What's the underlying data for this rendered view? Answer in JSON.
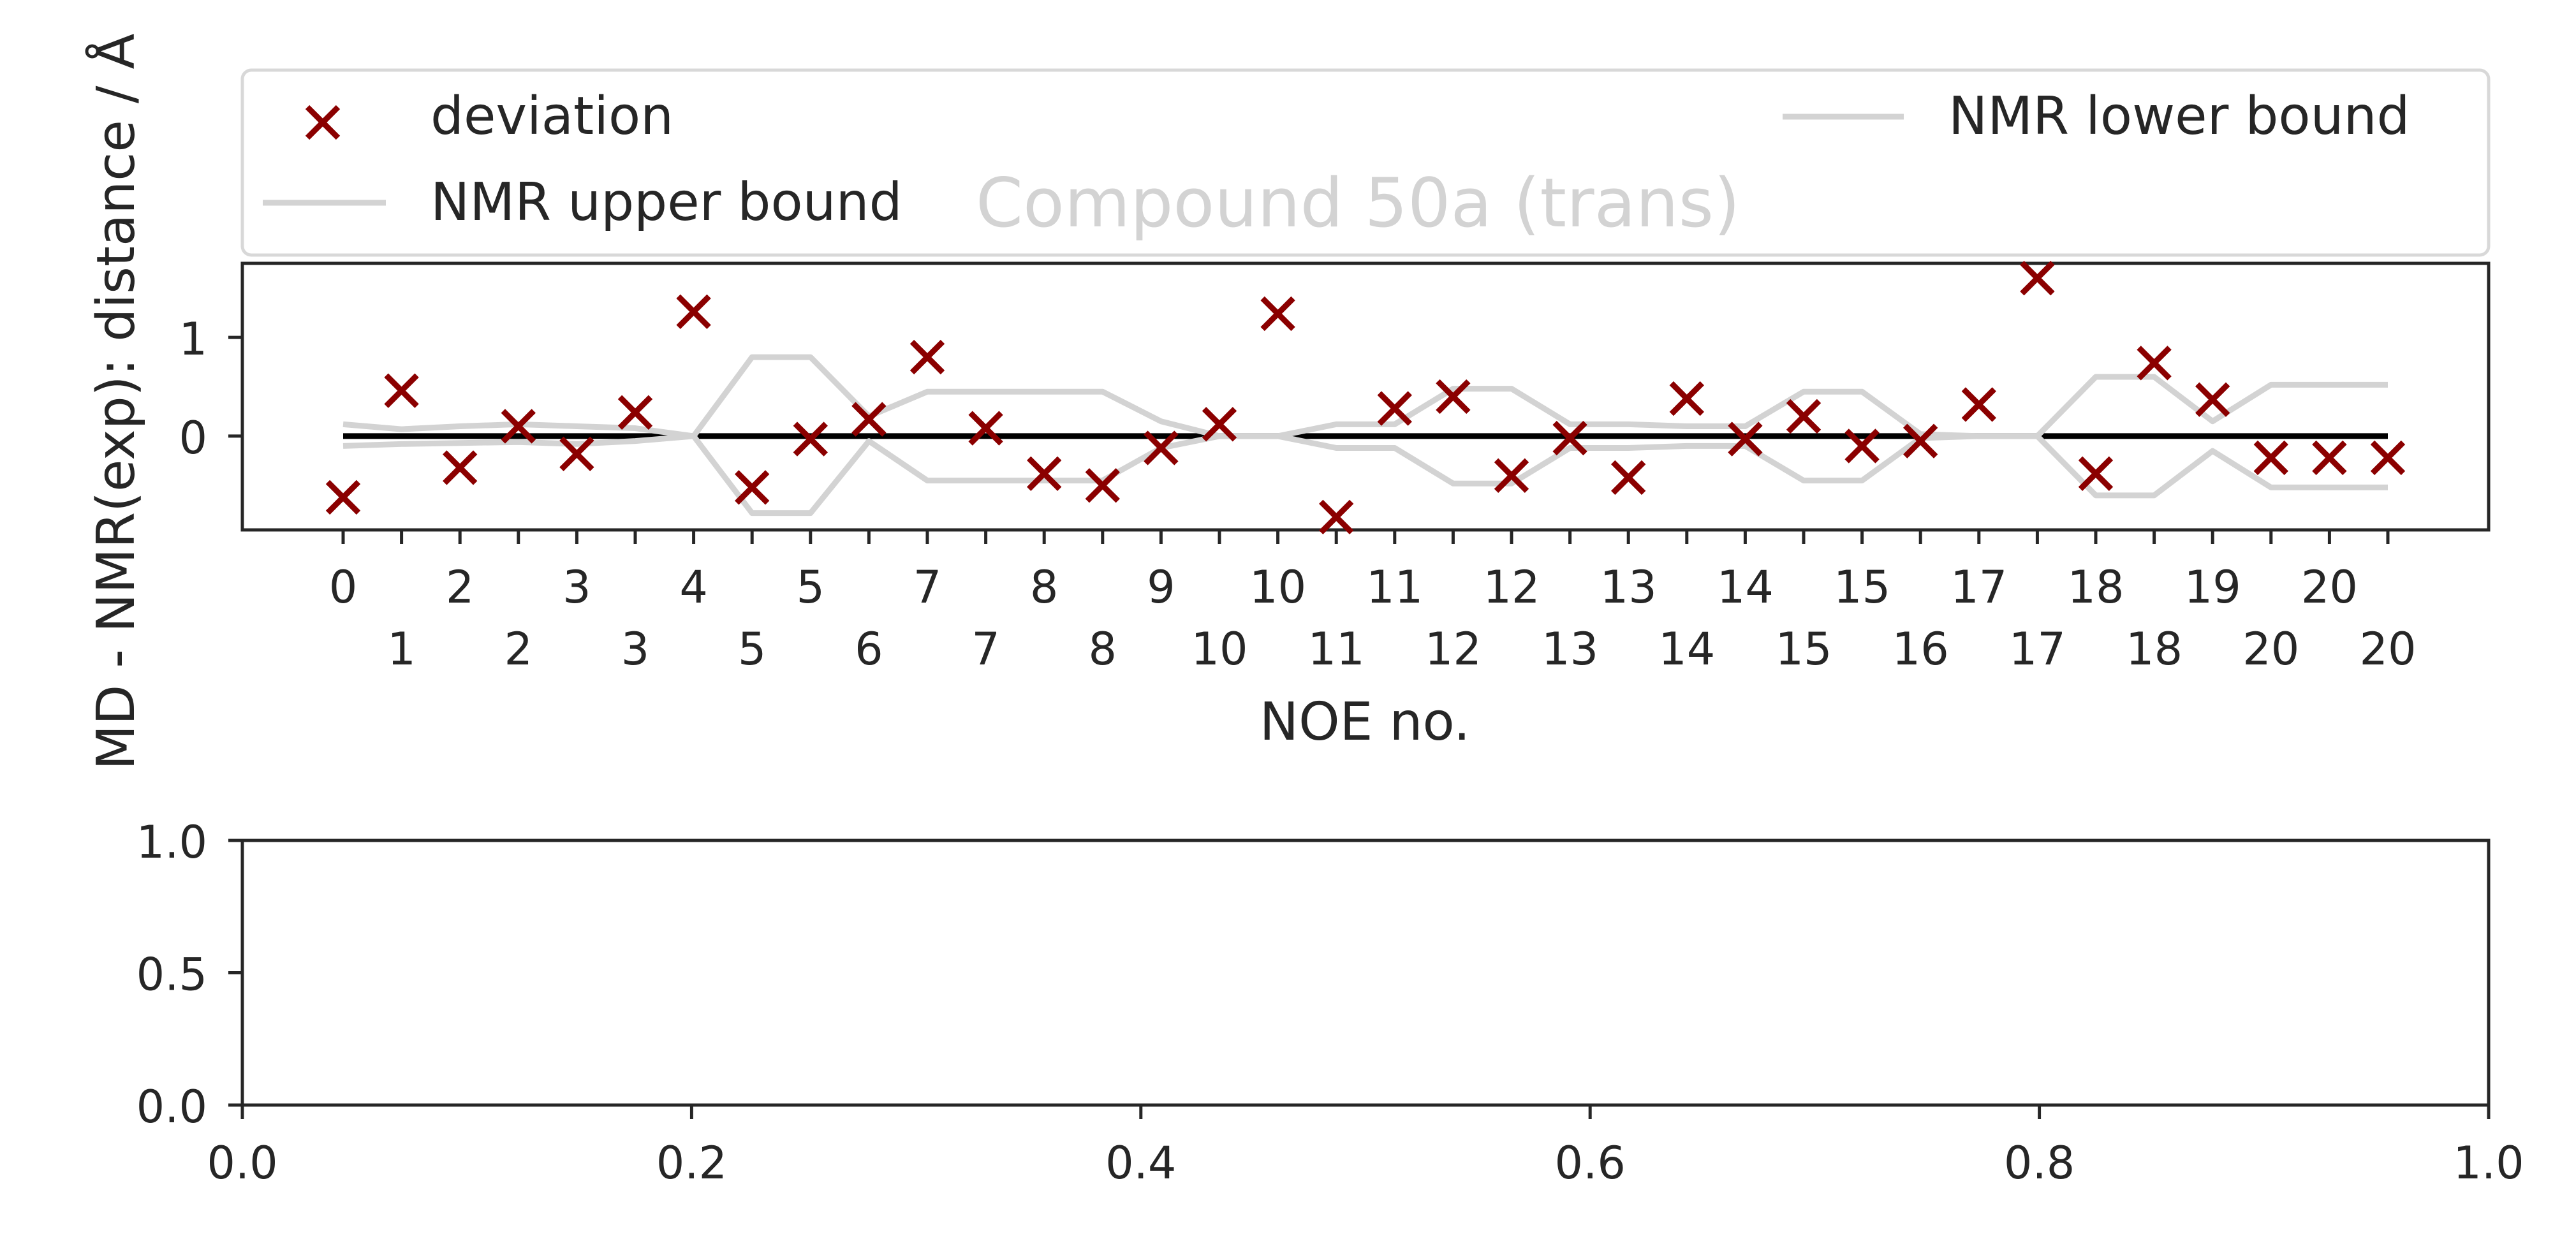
{
  "chart_data": [
    {
      "type": "scatter",
      "title": "Compound 50a (trans)",
      "xlabel": "NOE no.",
      "ylabel": "MD - NMR(exp): distance / Å",
      "ylim": [
        -0.95,
        1.75
      ],
      "yticks": [
        0,
        1
      ],
      "xtick_labels": [
        "0",
        "1",
        "2",
        "2",
        "3",
        "3",
        "4",
        "5",
        "5",
        "6",
        "7",
        "7",
        "8",
        "8",
        "9",
        "10",
        "10",
        "11",
        "11",
        "12",
        "12",
        "13",
        "13",
        "14",
        "14",
        "15",
        "15",
        "16",
        "17",
        "17",
        "18",
        "18",
        "19",
        "20",
        "20",
        "20"
      ],
      "legend": {
        "placement": "top, outside axes (expanded)",
        "entries": [
          "deviation",
          "NMR lower bound",
          "NMR upper bound"
        ]
      },
      "colors": {
        "deviation": "#8b0000",
        "bounds": "#d3d3d3",
        "zero_line": "#000000"
      },
      "series": [
        {
          "name": "deviation",
          "marker": "x",
          "values": [
            -0.62,
            0.46,
            -0.32,
            0.1,
            -0.18,
            0.24,
            1.26,
            -0.52,
            -0.03,
            0.17,
            0.8,
            0.08,
            -0.38,
            -0.5,
            -0.12,
            0.12,
            1.24,
            -0.82,
            0.28,
            0.4,
            -0.4,
            -0.02,
            -0.42,
            0.38,
            -0.03,
            0.2,
            -0.1,
            -0.05,
            0.32,
            1.6,
            -0.38,
            0.74,
            0.37,
            -0.22,
            -0.22,
            -0.22
          ]
        },
        {
          "name": "NMR upper bound",
          "values": [
            0.12,
            0.07,
            0.1,
            0.12,
            0.1,
            0.08,
            0.0,
            0.8,
            0.8,
            0.2,
            0.45,
            0.45,
            0.45,
            0.45,
            0.15,
            0.0,
            0.0,
            0.12,
            0.12,
            0.48,
            0.48,
            0.12,
            0.12,
            0.1,
            0.1,
            0.45,
            0.45,
            0.02,
            0.0,
            0.0,
            0.6,
            0.6,
            0.15,
            0.52,
            0.52,
            0.52
          ]
        },
        {
          "name": "NMR lower bound",
          "values": [
            -0.1,
            -0.08,
            -0.07,
            -0.06,
            -0.08,
            -0.05,
            0.0,
            -0.78,
            -0.78,
            -0.05,
            -0.45,
            -0.45,
            -0.45,
            -0.45,
            -0.12,
            0.0,
            0.0,
            -0.12,
            -0.12,
            -0.48,
            -0.48,
            -0.12,
            -0.12,
            -0.1,
            -0.1,
            -0.45,
            -0.45,
            -0.02,
            0.0,
            0.0,
            -0.6,
            -0.6,
            -0.15,
            -0.52,
            -0.52,
            -0.52
          ]
        }
      ]
    },
    {
      "type": "scatter",
      "title": "",
      "xlim": [
        0.0,
        1.0
      ],
      "ylim": [
        0.0,
        1.0
      ],
      "xtick_labels": [
        "0.0",
        "0.2",
        "0.4",
        "0.6",
        "0.8",
        "1.0"
      ],
      "ytick_labels": [
        "0.0",
        "0.5",
        "1.0"
      ],
      "series": []
    }
  ]
}
